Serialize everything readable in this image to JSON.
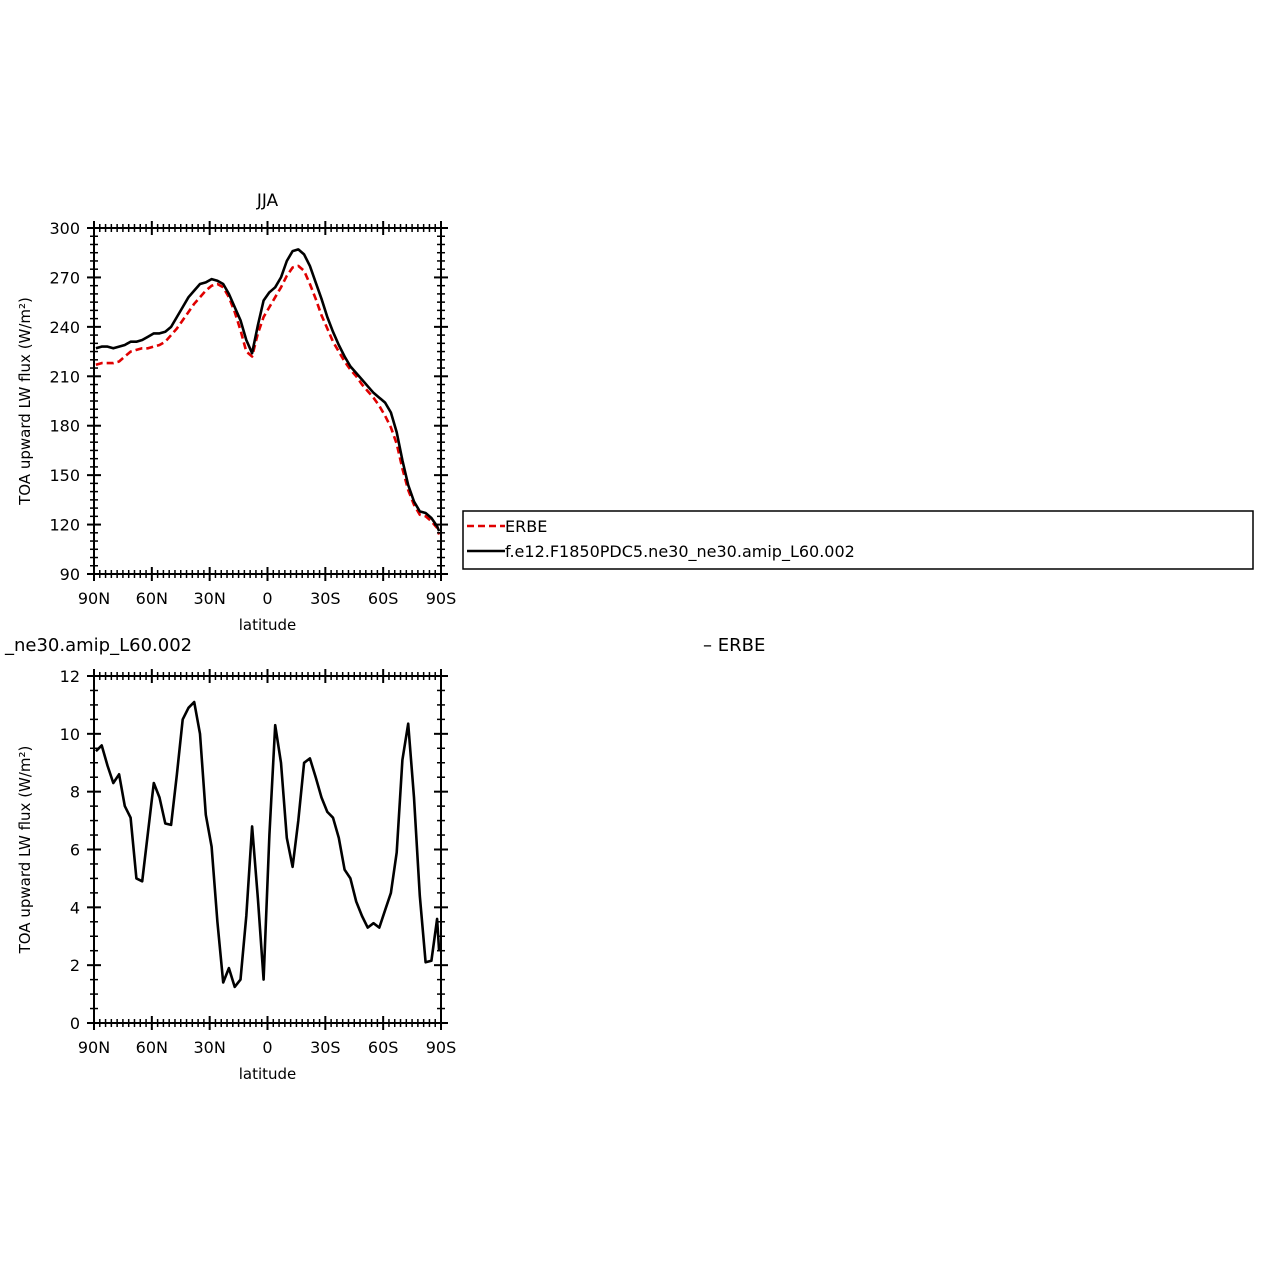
{
  "chart_data": [
    {
      "type": "line",
      "title": "JJA",
      "xlabel": "latitude",
      "ylabel": "TOA upward LW flux (W/m²)",
      "xlim": [
        -90,
        90
      ],
      "ylim": [
        90,
        300
      ],
      "xticks": [
        {
          "value": -90,
          "label": "90N"
        },
        {
          "value": -60,
          "label": "60N"
        },
        {
          "value": -30,
          "label": "30N"
        },
        {
          "value": 0,
          "label": "0"
        },
        {
          "value": 30,
          "label": "30S"
        },
        {
          "value": 60,
          "label": "60S"
        },
        {
          "value": 90,
          "label": "90S"
        }
      ],
      "yticks": [
        90,
        120,
        150,
        180,
        210,
        240,
        270,
        300
      ],
      "legend": {
        "placement": "right",
        "entries": [
          "ERBE",
          "f.e12.F1850PDC5.ne30_ne30.amip_L60.002"
        ]
      },
      "series": [
        {
          "name": "ERBE",
          "color": "#e00000",
          "dash": true,
          "x": [
            -89,
            -86,
            -83,
            -80,
            -77,
            -74,
            -71,
            -68,
            -65,
            -62,
            -59,
            -56,
            -53,
            -50,
            -47,
            -44,
            -41,
            -38,
            -35,
            -32,
            -29,
            -26,
            -23,
            -20,
            -17,
            -14,
            -11,
            -8,
            -5,
            -2,
            1,
            4,
            7,
            10,
            13,
            16,
            19,
            22,
            25,
            28,
            31,
            34,
            37,
            40,
            43,
            46,
            49,
            52,
            55,
            58,
            61,
            64,
            67,
            70,
            73,
            76,
            79,
            82,
            85,
            88,
            89
          ],
          "y": [
            217,
            218,
            218,
            218,
            219,
            222,
            225,
            226,
            227,
            227,
            228,
            229,
            231,
            235,
            239,
            244,
            249,
            254,
            258,
            262,
            265,
            266,
            264,
            258,
            249,
            238,
            225,
            222,
            236,
            246,
            252,
            258,
            264,
            271,
            276,
            277,
            274,
            266,
            257,
            247,
            239,
            231,
            225,
            219,
            214,
            210,
            205,
            201,
            197,
            192,
            186,
            179,
            169,
            154,
            141,
            132,
            126,
            125,
            122,
            118,
            114
          ]
        },
        {
          "name": "f.e12.F1850PDC5.ne30_ne30.amip_L60.002",
          "color": "#000000",
          "dash": false,
          "x": [
            -89,
            -86,
            -83,
            -80,
            -77,
            -74,
            -71,
            -68,
            -65,
            -62,
            -59,
            -56,
            -53,
            -50,
            -47,
            -44,
            -41,
            -38,
            -35,
            -32,
            -29,
            -26,
            -23,
            -20,
            -17,
            -14,
            -11,
            -8,
            -5,
            -2,
            1,
            4,
            7,
            10,
            13,
            16,
            19,
            22,
            25,
            28,
            31,
            34,
            37,
            40,
            43,
            46,
            49,
            52,
            55,
            58,
            61,
            64,
            67,
            70,
            73,
            76,
            79,
            82,
            85,
            88,
            89
          ],
          "y": [
            227,
            228,
            228,
            227,
            228,
            229,
            231,
            231,
            232,
            234,
            236,
            236,
            237,
            240,
            246,
            252,
            258,
            262,
            266,
            267,
            269,
            268,
            266,
            260,
            252,
            244,
            232,
            224,
            241,
            256,
            261,
            264,
            270,
            280,
            286,
            287,
            284,
            277,
            267,
            257,
            246,
            237,
            229,
            222,
            216,
            212,
            208,
            204,
            200,
            197,
            194,
            188,
            176,
            159,
            144,
            134,
            128,
            127,
            124,
            119,
            116
          ]
        }
      ]
    },
    {
      "type": "line",
      "title": "_ne30.amip_L60.002",
      "title_right": "– ERBE",
      "xlabel": "latitude",
      "ylabel": "TOA upward LW flux (W/m²)",
      "xlim": [
        -90,
        90
      ],
      "ylim": [
        0,
        12
      ],
      "xticks": [
        {
          "value": -90,
          "label": "90N"
        },
        {
          "value": -60,
          "label": "60N"
        },
        {
          "value": -30,
          "label": "30N"
        },
        {
          "value": 0,
          "label": "0"
        },
        {
          "value": 30,
          "label": "30S"
        },
        {
          "value": 60,
          "label": "60S"
        },
        {
          "value": 90,
          "label": "90S"
        }
      ],
      "yticks": [
        0,
        2,
        4,
        6,
        8,
        10,
        12
      ],
      "series": [
        {
          "color": "#000000",
          "dash": false,
          "x": [
            -89,
            -86,
            -83,
            -80,
            -77,
            -74,
            -71,
            -68,
            -65,
            -62,
            -59,
            -56,
            -53,
            -50,
            -47,
            -44,
            -41,
            -38,
            -35,
            -32,
            -29,
            -26,
            -23,
            -20,
            -17,
            -14,
            -11,
            -8,
            -5,
            -2,
            1,
            4,
            7,
            10,
            13,
            16,
            19,
            22,
            25,
            28,
            31,
            34,
            37,
            40,
            43,
            46,
            49,
            52,
            55,
            58,
            61,
            64,
            67,
            70,
            73,
            76,
            79,
            82,
            85,
            88,
            89
          ],
          "y": [
            9.4,
            9.6,
            8.9,
            8.3,
            8.6,
            7.5,
            7.1,
            5.0,
            4.9,
            6.6,
            8.3,
            7.8,
            6.9,
            6.85,
            8.6,
            10.5,
            10.9,
            11.1,
            10.0,
            7.2,
            6.1,
            3.5,
            1.4,
            1.9,
            1.25,
            1.5,
            3.7,
            6.8,
            4.3,
            1.5,
            6.5,
            10.3,
            9.0,
            6.4,
            5.4,
            7.0,
            9.0,
            9.15,
            8.5,
            7.8,
            7.3,
            7.1,
            6.4,
            5.3,
            5.0,
            4.2,
            3.7,
            3.3,
            3.45,
            3.3,
            3.9,
            4.5,
            5.9,
            9.1,
            10.35,
            7.8,
            4.4,
            2.1,
            2.15,
            3.6,
            2.5
          ]
        }
      ]
    }
  ]
}
